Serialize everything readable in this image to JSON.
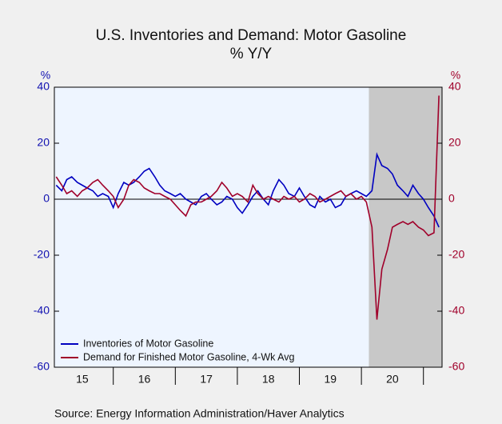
{
  "chart_data": {
    "type": "line",
    "title": "U.S. Inventories and Demand: Motor Gasoline",
    "subtitle": "% Y/Y",
    "y_unit_label": "%",
    "y2_unit_label": "%",
    "source": "Source:  Energy Information Administration/Haver Analytics",
    "x": [
      2015.08,
      2015.17,
      2015.25,
      2015.33,
      2015.42,
      2015.5,
      2015.58,
      2015.67,
      2015.75,
      2015.83,
      2015.92,
      2016.0,
      2016.08,
      2016.17,
      2016.25,
      2016.33,
      2016.42,
      2016.5,
      2016.58,
      2016.67,
      2016.75,
      2016.83,
      2016.92,
      2017.0,
      2017.08,
      2017.17,
      2017.25,
      2017.33,
      2017.42,
      2017.5,
      2017.58,
      2017.67,
      2017.75,
      2017.83,
      2017.92,
      2018.0,
      2018.08,
      2018.17,
      2018.25,
      2018.33,
      2018.42,
      2018.5,
      2018.58,
      2018.67,
      2018.75,
      2018.83,
      2018.92,
      2019.0,
      2019.08,
      2019.17,
      2019.25,
      2019.33,
      2019.42,
      2019.5,
      2019.58,
      2019.67,
      2019.75,
      2019.83,
      2019.92,
      2020.0,
      2020.08,
      2020.17,
      2020.25,
      2020.33,
      2020.42,
      2020.5,
      2020.58,
      2020.67,
      2020.75,
      2020.83,
      2020.92,
      2021.0,
      2021.08,
      2021.17,
      2021.25
    ],
    "series": [
      {
        "name": "Inventories of Motor Gasoline",
        "color": "#0000c0",
        "values": [
          5,
          3,
          7,
          8,
          6,
          5,
          4,
          3,
          1,
          2,
          1,
          -3,
          2,
          6,
          5,
          6,
          8,
          10,
          11,
          8,
          5,
          3,
          2,
          1,
          2,
          0,
          -1,
          -2,
          1,
          2,
          0,
          -2,
          -1,
          1,
          0,
          -3,
          -5,
          -2,
          1,
          3,
          0,
          -2,
          3,
          7,
          5,
          2,
          1,
          4,
          1,
          -2,
          -3,
          1,
          -1,
          0,
          -3,
          -2,
          1,
          2,
          3,
          2,
          1,
          3,
          16,
          12,
          11,
          9,
          5,
          3,
          1,
          5,
          2,
          0,
          -3,
          -6,
          -10
        ]
      },
      {
        "name": "Demand for Finished Motor Gasoline, 4-Wk Avg",
        "color": "#a0002a",
        "axis": "y2",
        "values": [
          8,
          5,
          2,
          3,
          1,
          3,
          4,
          6,
          7,
          5,
          3,
          1,
          -3,
          0,
          5,
          7,
          6,
          4,
          3,
          2,
          2,
          1,
          0,
          -2,
          -4,
          -6,
          -2,
          -1,
          -1,
          0,
          1,
          3,
          6,
          4,
          1,
          2,
          1,
          -1,
          5,
          2,
          0,
          1,
          0,
          -1,
          1,
          0,
          1,
          -1,
          0,
          2,
          1,
          -1,
          0,
          1,
          2,
          3,
          1,
          2,
          0,
          1,
          -1,
          -10,
          -43,
          -25,
          -18,
          -10,
          -9,
          -8,
          -9,
          -8,
          -10,
          -11,
          -13,
          -12,
          37
        ]
      }
    ],
    "xlim": [
      2015.05,
      2021.3
    ],
    "xticks": [
      2016,
      2017,
      2018,
      2019,
      2020,
      2021
    ],
    "xlabels": [
      {
        "value": 2015.5,
        "label": "15"
      },
      {
        "value": 2016.5,
        "label": "16"
      },
      {
        "value": 2017.5,
        "label": "17"
      },
      {
        "value": 2018.5,
        "label": "18"
      },
      {
        "value": 2019.5,
        "label": "19"
      },
      {
        "value": 2020.5,
        "label": "20"
      }
    ],
    "ylim": [
      -60,
      40
    ],
    "yticks": [
      -60,
      -40,
      -20,
      0,
      20,
      40
    ],
    "y2lim": [
      -60,
      40
    ],
    "y2ticks": [
      -60,
      -40,
      -20,
      0,
      20,
      40
    ],
    "shade": [
      2020.12,
      2021.3
    ],
    "legend": "lower left"
  }
}
